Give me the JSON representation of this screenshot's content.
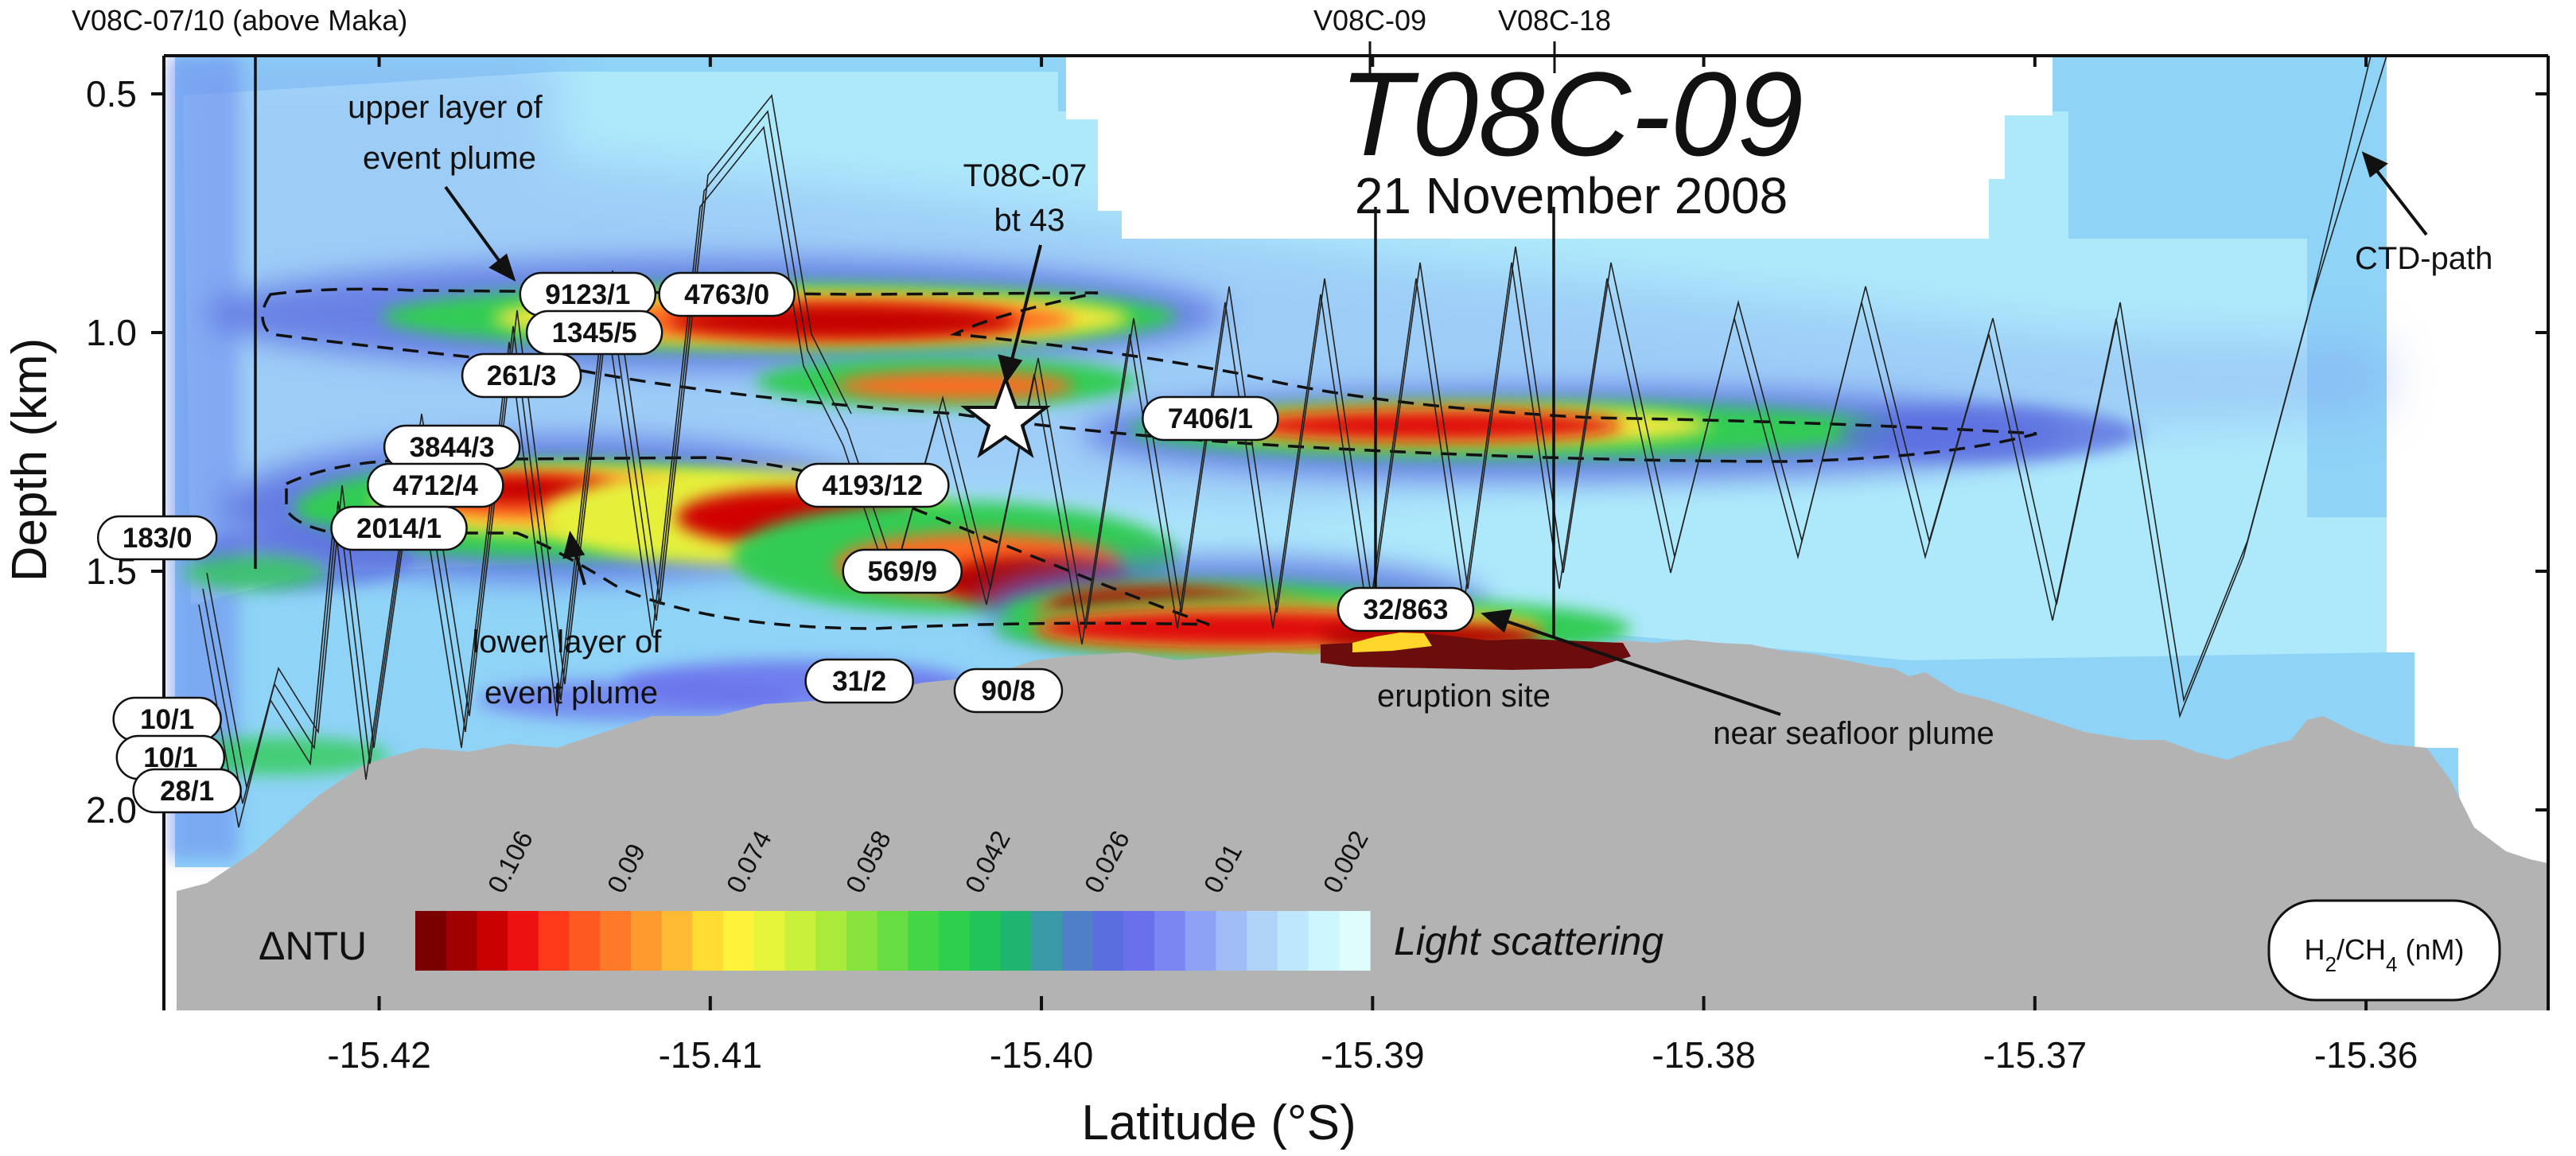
{
  "chart_data": {
    "type": "heatmap",
    "title": "T08C-09",
    "subtitle": "21 November 2008",
    "xlabel": "Latitude (°S)",
    "ylabel": "Depth (km)",
    "xlim": [
      -15.4265,
      -15.3545
    ],
    "ylim": [
      2.42,
      0.42
    ],
    "x_ticks": [
      -15.42,
      -15.41,
      -15.4,
      -15.39,
      -15.38,
      -15.37,
      -15.36
    ],
    "x_tick_labels": [
      "-15.42",
      "-15.41",
      "-15.40",
      "-15.39",
      "-15.38",
      "-15.37",
      "-15.36"
    ],
    "y_ticks": [
      0.5,
      1.0,
      1.5,
      2.0
    ],
    "y_tick_labels": [
      "0.5",
      "1.0",
      "1.5",
      "2.0"
    ],
    "colorbar": {
      "label": "ΔNTU",
      "description": "Light scattering",
      "tick_values": [
        "0.106",
        "0.09",
        "0.074",
        "0.058",
        "0.042",
        "0.026",
        "0.01",
        "0.002"
      ],
      "colors": [
        "#7a0000",
        "#a00000",
        "#c80000",
        "#ee1111",
        "#ff3a1a",
        "#ff5a22",
        "#ff7a28",
        "#ff9a2e",
        "#ffbb33",
        "#ffdd33",
        "#fff23a",
        "#e6f53a",
        "#c9f03a",
        "#aaea3a",
        "#88e43c",
        "#66dd40",
        "#44d645",
        "#2ecf4d",
        "#22c45a",
        "#1fb470",
        "#3a9aa6",
        "#4f7fc6",
        "#5b6ee0",
        "#6a70ec",
        "#7b86f2",
        "#8ea2f5",
        "#a0bdf7",
        "#b0d4f8",
        "#bfe7fb",
        "#cdf6fd",
        "#e0fdfe"
      ]
    },
    "ratio_key": "H2/CH4 (nM)",
    "sample_labels": [
      {
        "text": "9123/1",
        "lat": -15.4137,
        "depth": 0.92
      },
      {
        "text": "4763/0",
        "lat": -15.4095,
        "depth": 0.92
      },
      {
        "text": "1345/5",
        "lat": -15.4135,
        "depth": 1.0
      },
      {
        "text": "261/3",
        "lat": -15.4157,
        "depth": 1.09
      },
      {
        "text": "7406/1",
        "lat": -15.3949,
        "depth": 1.18
      },
      {
        "text": "3844/3",
        "lat": -15.4178,
        "depth": 1.24
      },
      {
        "text": "4712/4",
        "lat": -15.4183,
        "depth": 1.32
      },
      {
        "text": "4193/12",
        "lat": -15.4051,
        "depth": 1.32
      },
      {
        "text": "2014/1",
        "lat": -15.4194,
        "depth": 1.41
      },
      {
        "text": "183/0",
        "lat": -15.4267,
        "depth": 1.43
      },
      {
        "text": "569/9",
        "lat": -15.4042,
        "depth": 1.5
      },
      {
        "text": "32/863",
        "lat": -15.389,
        "depth": 1.58
      },
      {
        "text": "31/2",
        "lat": -15.4055,
        "depth": 1.73
      },
      {
        "text": "90/8",
        "lat": -15.401,
        "depth": 1.75
      },
      {
        "text": "10/1",
        "lat": -15.4264,
        "depth": 1.81
      },
      {
        "text": "10/1",
        "lat": -15.4263,
        "depth": 1.89
      },
      {
        "text": "28/1",
        "lat": -15.4258,
        "depth": 1.96
      }
    ],
    "station_labels": [
      {
        "text": "V08C-07/10 (above Maka)",
        "lat": -15.4236
      },
      {
        "text": "V08C-09",
        "lat": -15.3898
      },
      {
        "text": "V08C-18",
        "lat": -15.3842
      }
    ],
    "annotations": [
      {
        "text": "upper layer of event plume"
      },
      {
        "text": "lower layer of event plume"
      },
      {
        "text": "T08C-07 bt 43"
      },
      {
        "text": "CTD-path"
      },
      {
        "text": "eruption site"
      },
      {
        "text": "near seafloor plume"
      }
    ]
  }
}
